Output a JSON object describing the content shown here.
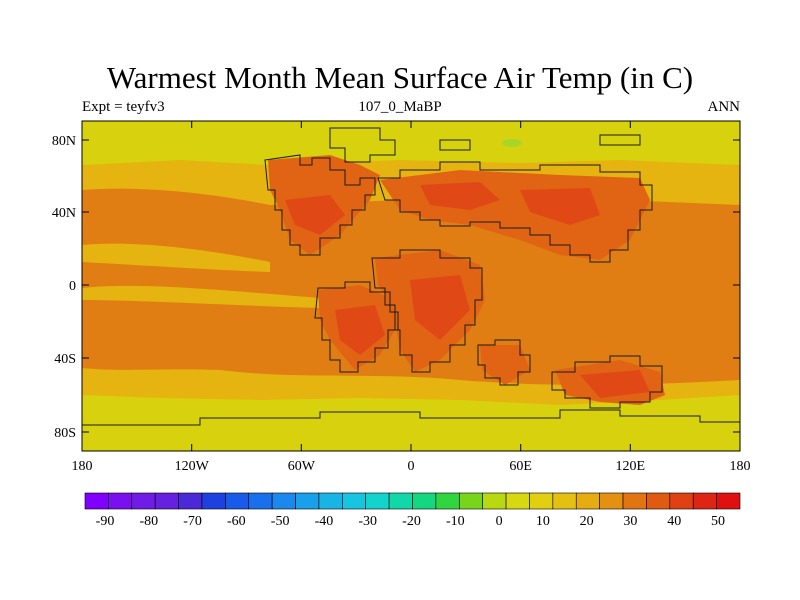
{
  "map": {
    "title": "Warmest Month Mean Surface Air Temp (in C)",
    "left_label": "Expt = teyfv3",
    "center_label": "107_0_MaBP",
    "right_label": "ANN",
    "lat_ticks": [
      "80N",
      "40N",
      "0",
      "40S",
      "80S"
    ],
    "lon_ticks": [
      "180",
      "120W",
      "60W",
      "0",
      "60E",
      "120E",
      "180"
    ]
  },
  "colorbar": {
    "labels": [
      "-90",
      "-80",
      "-70",
      "-60",
      "-50",
      "-40",
      "-30",
      "-20",
      "-10",
      "0",
      "10",
      "20",
      "30",
      "40",
      "50"
    ],
    "colors": [
      "#7f00ff",
      "#7a10f0",
      "#6f1ce6",
      "#6620e0",
      "#4a2ad8",
      "#1e40e0",
      "#1a5ae8",
      "#1a70ec",
      "#1a88ec",
      "#18a0ea",
      "#18b4e6",
      "#16c6e0",
      "#12d4cc",
      "#10d8a8",
      "#14d880",
      "#30d640",
      "#78d61a",
      "#b8d810",
      "#d8d810",
      "#e0d010",
      "#e4c010",
      "#e6ac10",
      "#e49010",
      "#e27412",
      "#e05a12",
      "#e04012",
      "#de2412",
      "#e01010"
    ]
  },
  "colors": {
    "cool_band": "#d8d20e",
    "warm_band": "#e6b410",
    "hot_band": "#e07e14",
    "land_hot": "#e06414",
    "land_hottest": "#e04816",
    "arctic_green": "#a8d628"
  }
}
